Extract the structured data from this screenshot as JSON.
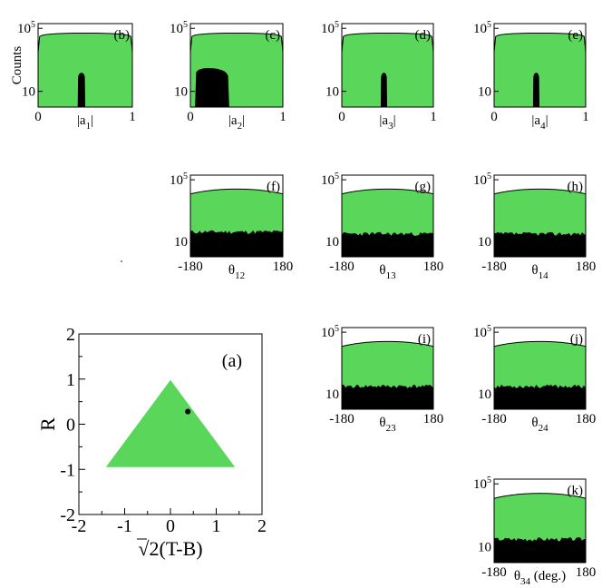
{
  "colors": {
    "signal": "#5ad65a",
    "background_fill": "#000000",
    "frame": "#000000"
  },
  "chart_data": [
    {
      "id": "b",
      "panel_label": "(b)",
      "type": "area",
      "title": "",
      "xlabel_main": "|a",
      "xlabel_sub": "1",
      "xlabel_tail": "|",
      "ylabel": "Counts",
      "yscale": "log",
      "ylim": [
        1,
        200000
      ],
      "xlim": [
        0,
        1
      ],
      "y_ticks": [
        {
          "value": 100000,
          "base": "10",
          "exp": "5"
        },
        {
          "value": 10,
          "base": "10",
          "exp": ""
        }
      ],
      "x_tick_labels": [
        {
          "value": 0,
          "label": "0"
        },
        {
          "value": 1,
          "label": "1"
        }
      ],
      "series": [
        {
          "name": "green",
          "shape": "dome",
          "peak": 50000,
          "edge": 3000
        },
        {
          "name": "black",
          "shape": "spike",
          "center": 0.46,
          "width": 0.08,
          "peak": 150
        }
      ]
    },
    {
      "id": "c",
      "panel_label": "(c)",
      "type": "area",
      "title": "",
      "xlabel_main": "|a",
      "xlabel_sub": "2",
      "xlabel_tail": "|",
      "ylabel": "",
      "yscale": "log",
      "ylim": [
        1,
        200000
      ],
      "xlim": [
        0,
        1
      ],
      "y_ticks": [
        {
          "value": 100000,
          "base": "10",
          "exp": "5"
        },
        {
          "value": 10,
          "base": "10",
          "exp": ""
        }
      ],
      "x_tick_labels": [
        {
          "value": 0,
          "label": "0"
        },
        {
          "value": 1,
          "label": "1"
        }
      ],
      "series": [
        {
          "name": "green",
          "shape": "dome",
          "peak": 50000,
          "edge": 3000
        },
        {
          "name": "black",
          "shape": "broad",
          "start": 0.05,
          "end": 0.42,
          "peak": 300
        }
      ]
    },
    {
      "id": "d",
      "panel_label": "(d)",
      "type": "area",
      "title": "",
      "xlabel_main": "|a",
      "xlabel_sub": "3",
      "xlabel_tail": "|",
      "ylabel": "",
      "yscale": "log",
      "ylim": [
        1,
        200000
      ],
      "xlim": [
        0,
        1
      ],
      "y_ticks": [
        {
          "value": 100000,
          "base": "10",
          "exp": "5"
        },
        {
          "value": 10,
          "base": "10",
          "exp": ""
        }
      ],
      "x_tick_labels": [
        {
          "value": 0,
          "label": "0"
        },
        {
          "value": 1,
          "label": "1"
        }
      ],
      "series": [
        {
          "name": "green",
          "shape": "dome",
          "peak": 50000,
          "edge": 3000
        },
        {
          "name": "black",
          "shape": "spike",
          "center": 0.46,
          "width": 0.07,
          "peak": 150
        }
      ]
    },
    {
      "id": "e",
      "panel_label": "(e)",
      "type": "area",
      "title": "",
      "xlabel_main": "|a",
      "xlabel_sub": "4",
      "xlabel_tail": "|",
      "ylabel": "",
      "yscale": "log",
      "ylim": [
        1,
        200000
      ],
      "xlim": [
        0,
        1
      ],
      "y_ticks": [
        {
          "value": 100000,
          "base": "10",
          "exp": "5"
        },
        {
          "value": 10,
          "base": "10",
          "exp": ""
        }
      ],
      "x_tick_labels": [
        {
          "value": 0,
          "label": "0"
        },
        {
          "value": 1,
          "label": "1"
        }
      ],
      "series": [
        {
          "name": "green",
          "shape": "dome",
          "peak": 50000,
          "edge": 3000
        },
        {
          "name": "black",
          "shape": "spike",
          "center": 0.46,
          "width": 0.07,
          "peak": 150
        }
      ]
    },
    {
      "id": "f",
      "panel_label": "(f)",
      "type": "area",
      "title": "",
      "xlabel_main": "θ",
      "xlabel_sub": "12",
      "xlabel_tail": "",
      "ylabel": "",
      "yscale": "log",
      "ylim": [
        1,
        200000
      ],
      "xlim": [
        -180,
        180
      ],
      "y_ticks": [
        {
          "value": 100000,
          "base": "10",
          "exp": "5"
        },
        {
          "value": 10,
          "base": "10",
          "exp": ""
        }
      ],
      "x_tick_labels": [
        {
          "value": -180,
          "label": "-180"
        },
        {
          "value": 180,
          "label": "180"
        }
      ],
      "series": [
        {
          "name": "green",
          "shape": "flat",
          "level_edge": 12000,
          "level_mid": 25000
        },
        {
          "name": "black",
          "shape": "noise",
          "level": 40,
          "seed": 11
        }
      ]
    },
    {
      "id": "g",
      "panel_label": "(g)",
      "type": "area",
      "title": "",
      "xlabel_main": "θ",
      "xlabel_sub": "13",
      "xlabel_tail": "",
      "ylabel": "",
      "yscale": "log",
      "ylim": [
        1,
        200000
      ],
      "xlim": [
        -180,
        180
      ],
      "y_ticks": [
        {
          "value": 100000,
          "base": "10",
          "exp": "5"
        },
        {
          "value": 10,
          "base": "10",
          "exp": ""
        }
      ],
      "x_tick_labels": [
        {
          "value": -180,
          "label": "-180"
        },
        {
          "value": 180,
          "label": "180"
        }
      ],
      "series": [
        {
          "name": "green",
          "shape": "flat",
          "level_edge": 12000,
          "level_mid": 25000
        },
        {
          "name": "black",
          "shape": "noise",
          "level": 30,
          "seed": 23
        }
      ]
    },
    {
      "id": "h",
      "panel_label": "(h)",
      "type": "area",
      "title": "",
      "xlabel_main": "θ",
      "xlabel_sub": "14",
      "xlabel_tail": "",
      "ylabel": "",
      "yscale": "log",
      "ylim": [
        1,
        200000
      ],
      "xlim": [
        -180,
        180
      ],
      "y_ticks": [
        {
          "value": 100000,
          "base": "10",
          "exp": "5"
        },
        {
          "value": 10,
          "base": "10",
          "exp": ""
        }
      ],
      "x_tick_labels": [
        {
          "value": -180,
          "label": "-180"
        },
        {
          "value": 180,
          "label": "180"
        }
      ],
      "series": [
        {
          "name": "green",
          "shape": "flat",
          "level_edge": 12000,
          "level_mid": 25000
        },
        {
          "name": "black",
          "shape": "noise",
          "level": 30,
          "seed": 37
        }
      ]
    },
    {
      "id": "i",
      "panel_label": "(i)",
      "type": "area",
      "title": "",
      "xlabel_main": "θ",
      "xlabel_sub": "23",
      "xlabel_tail": "",
      "ylabel": "",
      "yscale": "log",
      "ylim": [
        1,
        200000
      ],
      "xlim": [
        -180,
        180
      ],
      "y_ticks": [
        {
          "value": 100000,
          "base": "10",
          "exp": "5"
        },
        {
          "value": 10,
          "base": "10",
          "exp": ""
        }
      ],
      "x_tick_labels": [
        {
          "value": -180,
          "label": "-180"
        },
        {
          "value": 180,
          "label": "180"
        }
      ],
      "series": [
        {
          "name": "green",
          "shape": "flat",
          "level_edge": 12000,
          "level_mid": 25000
        },
        {
          "name": "black",
          "shape": "noise",
          "level": 30,
          "seed": 41
        }
      ]
    },
    {
      "id": "j",
      "panel_label": "(j)",
      "type": "area",
      "title": "",
      "xlabel_main": "θ",
      "xlabel_sub": "24",
      "xlabel_tail": "",
      "ylabel": "",
      "yscale": "log",
      "ylim": [
        1,
        200000
      ],
      "xlim": [
        -180,
        180
      ],
      "y_ticks": [
        {
          "value": 100000,
          "base": "10",
          "exp": "5"
        },
        {
          "value": 10,
          "base": "10",
          "exp": ""
        }
      ],
      "x_tick_labels": [
        {
          "value": -180,
          "label": "-180"
        },
        {
          "value": 180,
          "label": "180"
        }
      ],
      "series": [
        {
          "name": "green",
          "shape": "flat",
          "level_edge": 12000,
          "level_mid": 25000
        },
        {
          "name": "black",
          "shape": "noise",
          "level": 30,
          "seed": 53
        }
      ]
    },
    {
      "id": "k",
      "panel_label": "(k)",
      "type": "area",
      "title": "",
      "xlabel_main": "θ",
      "xlabel_sub": "34",
      "xlabel_tail": " (deg.)",
      "ylabel": "",
      "yscale": "log",
      "ylim": [
        1,
        200000
      ],
      "xlim": [
        -180,
        180
      ],
      "y_ticks": [
        {
          "value": 100000,
          "base": "10",
          "exp": "5"
        },
        {
          "value": 10,
          "base": "10",
          "exp": ""
        }
      ],
      "x_tick_labels": [
        {
          "value": -180,
          "label": "-180"
        },
        {
          "value": 180,
          "label": "180"
        }
      ],
      "series": [
        {
          "name": "green",
          "shape": "flat",
          "level_edge": 12000,
          "level_mid": 25000
        },
        {
          "name": "black",
          "shape": "noise",
          "level": 30,
          "seed": 67
        }
      ]
    },
    {
      "id": "a",
      "panel_label": "(a)",
      "type": "scatter",
      "title": "",
      "xlabel": "√2(T-B)",
      "ylabel": "R",
      "xlim": [
        -2,
        2
      ],
      "ylim": [
        -2,
        2
      ],
      "x_ticks": [
        -2,
        -1,
        0,
        1,
        2
      ],
      "y_ticks": [
        -2,
        -1,
        0,
        1,
        2
      ],
      "x_tick_labels": [
        "-2",
        "-1",
        "0",
        "1",
        "2"
      ],
      "y_tick_labels": [
        "-2",
        "-1",
        "0",
        "1",
        "2"
      ],
      "region": {
        "name": "green",
        "shape": "triangle",
        "vertices": [
          [
            -1.41,
            -0.95
          ],
          [
            1.41,
            -0.95
          ],
          [
            0,
            0.98
          ]
        ]
      },
      "series": [
        {
          "name": "black",
          "x": 0.38,
          "y": 0.28,
          "radius": 0.12
        }
      ]
    }
  ]
}
